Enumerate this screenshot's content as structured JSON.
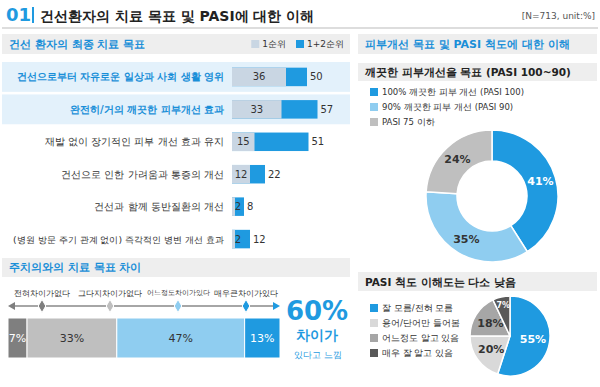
{
  "header": {
    "number": "01",
    "title": "건선환자의 치료 목표 및 PASI에 대한 이해",
    "note": "[N=713, unit:%]"
  },
  "right_panel": {
    "title": "피부개선 목표 및 PASI 척도에 대한 이해"
  },
  "chart_data": [
    {
      "type": "bar",
      "title": "건선 환자의 최종 치료 목표",
      "orientation": "horizontal",
      "stacked": false,
      "categories": [
        "건선으로부터 자유로운 일상과 사회 생활 영위",
        "완전히/거의 깨끗한 피부개선 효과",
        "재발 없이 장기적인 피부 개선 효과 유지",
        "건선으로 인한 가려움과 통증의 개선",
        "건선과 함께 동반질환의 개선",
        "(병원 방문 주기 관계 없이) 즉각적인 병변 개선 효과"
      ],
      "series": [
        {
          "name": "1순위",
          "color": "#c9d6e3",
          "values": [
            36,
            33,
            15,
            12,
            2,
            2
          ]
        },
        {
          "name": "1+2순위",
          "color": "#1f9ae0",
          "values": [
            50,
            57,
            51,
            22,
            8,
            12
          ]
        }
      ],
      "xlim": [
        0,
        60
      ],
      "tick_labels": "y",
      "data_labels": true,
      "legend": "top-right"
    },
    {
      "type": "bar",
      "title": "주치의와의 치료 목표 차이",
      "orientation": "horizontal",
      "stacked": true,
      "categories": [
        "전혀차이가없다",
        "그다지차이가없다",
        "어느정도차이가있다",
        "매우큰차이가있다"
      ],
      "values": [
        7,
        33,
        47,
        13
      ],
      "value_labels": [
        "7%",
        "33%",
        "47%",
        "13%"
      ],
      "colors": [
        "#7f7f7f",
        "#bfbfbf",
        "#8fcdf0",
        "#1f9ae0"
      ],
      "xlim": [
        0,
        100
      ],
      "data_labels": true,
      "annotations": [
        "60%",
        "차이가 있다고 느낌"
      ]
    },
    {
      "type": "donut",
      "title": "깨끗한 피부개선을 목표 (PASI 100~90)",
      "categories": [
        "100% 깨끗한 피부 개선 (PASI 100)",
        "90% 깨끗한 피부 개선 (PASI 90)",
        "PASI 75 이하"
      ],
      "values": [
        41,
        35,
        24
      ],
      "value_labels": [
        "41%",
        "35%",
        "24%"
      ],
      "colors": [
        "#1f9ae0",
        "#8fcdf0",
        "#bfbfbf"
      ],
      "data_labels": true,
      "legend": "top-left"
    },
    {
      "type": "pie",
      "title": "PASI 척도 이해도는 다소 낮음",
      "categories": [
        "잘 모름/전혀 모름",
        "용어/단어만 들어봄",
        "어느정도 알고 있음",
        "매우 잘 알고 있음"
      ],
      "values": [
        55,
        20,
        18,
        7
      ],
      "value_labels": [
        "55%",
        "20%",
        "18%",
        "7%"
      ],
      "colors": [
        "#1f9ae0",
        "#d9d9d9",
        "#a6a6a6",
        "#595959"
      ],
      "data_labels": true,
      "legend": "left"
    }
  ]
}
